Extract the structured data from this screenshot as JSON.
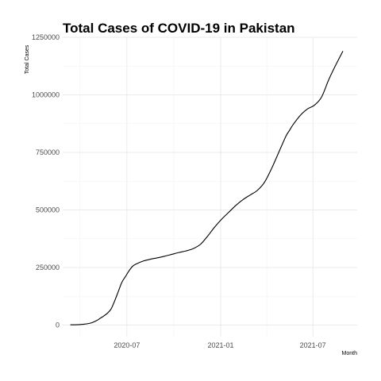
{
  "chart_data": {
    "type": "line",
    "title": "Total Cases of COVID-19 in Pakistan",
    "xlabel": "Month",
    "ylabel": "Total Cases",
    "xlim": [
      "2020-02-26",
      "2021-09-26"
    ],
    "ylim": [
      -50000,
      1250000
    ],
    "x_tick_labels": [
      "2020-07",
      "2021-01",
      "2021-07"
    ],
    "x_tick_dates": [
      "2020-07-01",
      "2021-01-01",
      "2021-07-01"
    ],
    "y_ticks": [
      0,
      250000,
      500000,
      750000,
      1000000,
      1250000
    ],
    "y_tick_labels": [
      "0",
      "250000",
      "500000",
      "750000",
      "1000000",
      "1250000"
    ],
    "grid": true,
    "legend": "none",
    "line_color": "#000000",
    "series": [
      {
        "x": [
          "2020-03-12",
          "2020-03-26",
          "2020-04-09",
          "2020-04-23",
          "2020-05-03",
          "2020-05-10",
          "2020-05-17",
          "2020-05-24",
          "2020-05-31",
          "2020-06-07",
          "2020-06-14",
          "2020-06-21",
          "2020-06-28",
          "2020-07-05",
          "2020-07-12",
          "2020-07-19",
          "2020-08-02",
          "2020-08-16",
          "2020-08-30",
          "2020-09-13",
          "2020-09-27",
          "2020-10-11",
          "2020-10-25",
          "2020-11-08",
          "2020-11-22",
          "2020-12-06",
          "2020-12-20",
          "2021-01-03",
          "2021-01-17",
          "2021-01-31",
          "2021-02-14",
          "2021-02-28",
          "2021-03-14",
          "2021-03-28",
          "2021-04-11",
          "2021-04-25",
          "2021-05-09",
          "2021-05-16",
          "2021-05-23",
          "2021-06-06",
          "2021-06-20",
          "2021-07-04",
          "2021-07-18",
          "2021-08-01",
          "2021-08-15",
          "2021-08-29"
        ],
        "y": [
          1000,
          1500,
          4000,
          10000,
          20000,
          30000,
          40000,
          52000,
          70000,
          105000,
          145000,
          185000,
          210000,
          235000,
          255000,
          265000,
          278000,
          286000,
          292000,
          299000,
          307000,
          315000,
          322000,
          332000,
          350000,
          385000,
          425000,
          460000,
          490000,
          520000,
          545000,
          565000,
          585000,
          620000,
          680000,
          750000,
          820000,
          845000,
          870000,
          910000,
          938000,
          955000,
          990000,
          1065000,
          1130000,
          1190000
        ]
      }
    ]
  }
}
